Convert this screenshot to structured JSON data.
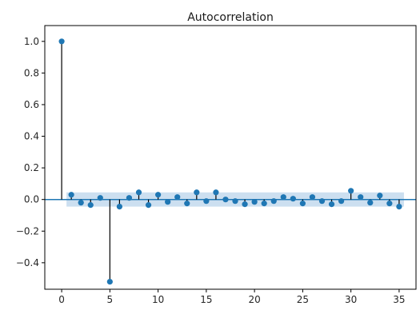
{
  "chart_data": {
    "type": "scatter",
    "title": "Autocorrelation",
    "xlabel": "",
    "ylabel": "",
    "xlim": [
      -1.75,
      36.75
    ],
    "ylim": [
      -0.5675,
      1.1
    ],
    "xticks": [
      0,
      5,
      10,
      15,
      20,
      25,
      30,
      35
    ],
    "yticks": [
      -0.4,
      -0.2,
      0.0,
      0.2,
      0.4,
      0.6,
      0.8,
      1.0
    ],
    "ytick_labels": [
      "−0.4",
      "−0.2",
      "0.0",
      "0.2",
      "0.4",
      "0.6",
      "0.8",
      "1.0"
    ],
    "grid": false,
    "confidence_band": 0.045,
    "series": [
      {
        "x": [
          0,
          1,
          2,
          3,
          4,
          5,
          6,
          7,
          8,
          9,
          10,
          11,
          12,
          13,
          14,
          15,
          16,
          17,
          18,
          19,
          20,
          21,
          22,
          23,
          24,
          25,
          26,
          27,
          28,
          29,
          30,
          31,
          32,
          33,
          34,
          35
        ],
        "values": [
          1.0,
          0.03,
          -0.02,
          -0.035,
          0.01,
          -0.52,
          -0.045,
          0.01,
          0.045,
          -0.035,
          0.03,
          -0.015,
          0.015,
          -0.025,
          0.045,
          -0.01,
          0.045,
          0.0,
          -0.01,
          -0.03,
          -0.015,
          -0.025,
          -0.01,
          0.015,
          0.005,
          -0.025,
          0.015,
          -0.01,
          -0.03,
          -0.01,
          0.055,
          0.015,
          -0.02,
          0.025,
          -0.025,
          -0.045
        ]
      }
    ],
    "colors": {
      "marker": "#1f77b4",
      "stem": "#000000",
      "band": "#c6dcee",
      "zero_line": "#1f77b4",
      "axis": "#000000"
    }
  }
}
